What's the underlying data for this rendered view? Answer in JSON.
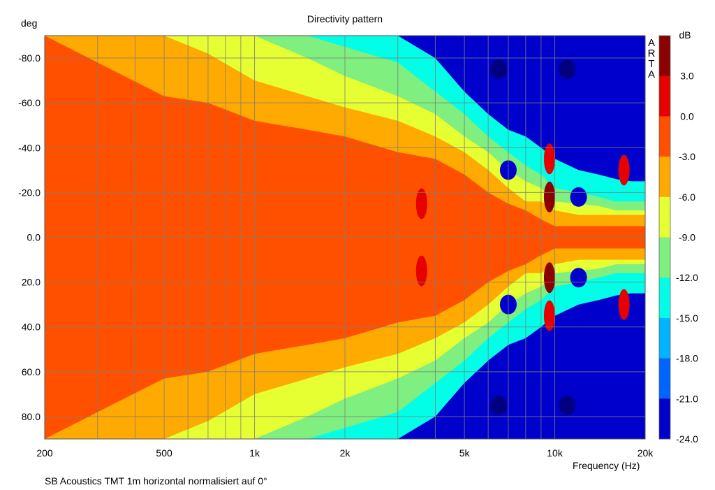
{
  "chart_data": {
    "type": "heatmap",
    "title": "Directivity pattern",
    "ylabel": "deg",
    "xlabel": "Frequency (Hz)",
    "footnote": "SB Acoustics TMT 1m horizontal normalisiert auf 0°",
    "watermark": [
      "A",
      "R",
      "T",
      "A"
    ],
    "x_scale": "log",
    "xlim": [
      200,
      20000
    ],
    "ylim": [
      -90,
      90
    ],
    "x_ticks": [
      {
        "value": 200,
        "label": "200"
      },
      {
        "value": 500,
        "label": "500"
      },
      {
        "value": 1000,
        "label": "1k"
      },
      {
        "value": 2000,
        "label": "2k"
      },
      {
        "value": 5000,
        "label": "5k"
      },
      {
        "value": 10000,
        "label": "10k"
      },
      {
        "value": 20000,
        "label": "20k"
      }
    ],
    "y_ticks": [
      {
        "value": -80,
        "label": "-80.0"
      },
      {
        "value": -60,
        "label": "-60.0"
      },
      {
        "value": -40,
        "label": "-40.0"
      },
      {
        "value": -20,
        "label": "-20.0"
      },
      {
        "value": 0,
        "label": "0.0"
      },
      {
        "value": 20,
        "label": "20.0"
      },
      {
        "value": 40,
        "label": "40.0"
      },
      {
        "value": 60,
        "label": "60.0"
      },
      {
        "value": 80,
        "label": "80.0"
      }
    ],
    "colorbar": {
      "unit": "dB",
      "labels": [
        "3.0",
        "0.0",
        "-3.0",
        "-6.0",
        "-9.0",
        "-12.0",
        "-15.0",
        "-18.0",
        "-21.0",
        "-24.0"
      ],
      "bands": [
        {
          "from": 3,
          "to": 6,
          "color": "#8b0000"
        },
        {
          "from": 0,
          "to": 3,
          "color": "#e60000"
        },
        {
          "from": -3,
          "to": 0,
          "color": "#ff5000"
        },
        {
          "from": -6,
          "to": -3,
          "color": "#ffaa00"
        },
        {
          "from": -9,
          "to": -6,
          "color": "#e6ff33"
        },
        {
          "from": -12,
          "to": -9,
          "color": "#7fef7f"
        },
        {
          "from": -15,
          "to": -12,
          "color": "#00ffe6"
        },
        {
          "from": -18,
          "to": -15,
          "color": "#00b4ff"
        },
        {
          "from": -21,
          "to": -18,
          "color": "#0064ff"
        },
        {
          "from": -24,
          "to": -21,
          "color": "#0000cc"
        }
      ],
      "below_color": "#000080"
    },
    "contours_note": "Approximate iso-level regions (symmetric about 0°); beamwidth as max |angle| per frequency for levels -3, -6, -9, -12, -15 dB",
    "beamwidth": {
      "freq_hz": [
        200,
        300,
        500,
        700,
        1000,
        1500,
        2000,
        3000,
        4000,
        5000,
        6000,
        7000,
        8000,
        9000,
        10000,
        12000,
        14000,
        16000,
        18000,
        20000
      ],
      "level_minus3": [
        90,
        78,
        63,
        60,
        52,
        48,
        45,
        38,
        35,
        28,
        20,
        15,
        12,
        8,
        5,
        5,
        5,
        5,
        5,
        5
      ],
      "level_minus6": [
        90,
        90,
        90,
        82,
        70,
        63,
        58,
        52,
        45,
        38,
        30,
        22,
        16,
        16,
        12,
        10,
        10,
        10,
        10,
        10
      ],
      "level_minus9": [
        90,
        90,
        90,
        90,
        90,
        80,
        72,
        63,
        55,
        45,
        38,
        30,
        25,
        22,
        16,
        15,
        14,
        12,
        12,
        12
      ],
      "level_minus12": [
        90,
        90,
        90,
        90,
        90,
        90,
        85,
        78,
        65,
        55,
        45,
        38,
        32,
        28,
        22,
        20,
        18,
        16,
        16,
        16
      ],
      "level_minus15": [
        90,
        90,
        90,
        90,
        90,
        90,
        90,
        90,
        80,
        65,
        55,
        48,
        45,
        40,
        35,
        30,
        28,
        26,
        25,
        25
      ]
    },
    "hotspots": [
      {
        "freq_hz": 3600,
        "angle_deg": -15,
        "level": "0 to 3 dB"
      },
      {
        "freq_hz": 3600,
        "angle_deg": 15,
        "level": "0 to 3 dB"
      },
      {
        "freq_hz": 9600,
        "angle_deg": -18,
        "level": "3 to 6 dB"
      },
      {
        "freq_hz": 9600,
        "angle_deg": 18,
        "level": "3 to 6 dB"
      },
      {
        "freq_hz": 9600,
        "angle_deg": -35,
        "level": "0 to 3 dB"
      },
      {
        "freq_hz": 9600,
        "angle_deg": 35,
        "level": "0 to 3 dB"
      },
      {
        "freq_hz": 17000,
        "angle_deg": -30,
        "level": "0 to 3 dB"
      },
      {
        "freq_hz": 17000,
        "angle_deg": 30,
        "level": "0 to 3 dB"
      }
    ],
    "coldspots": [
      {
        "freq_hz": 7000,
        "angle_deg": -30,
        "level": "-24 to -21 dB"
      },
      {
        "freq_hz": 7000,
        "angle_deg": 30,
        "level": "-24 to -21 dB"
      },
      {
        "freq_hz": 12000,
        "angle_deg": -18,
        "level": "-24 to -21 dB"
      },
      {
        "freq_hz": 12000,
        "angle_deg": 18,
        "level": "-24 to -21 dB"
      },
      {
        "freq_hz": 6500,
        "angle_deg": -75,
        "level": "below -24 dB"
      },
      {
        "freq_hz": 6500,
        "angle_deg": 75,
        "level": "below -24 dB"
      },
      {
        "freq_hz": 11000,
        "angle_deg": -75,
        "level": "below -24 dB"
      },
      {
        "freq_hz": 11000,
        "angle_deg": 75,
        "level": "below -24 dB"
      }
    ],
    "grid": true
  }
}
